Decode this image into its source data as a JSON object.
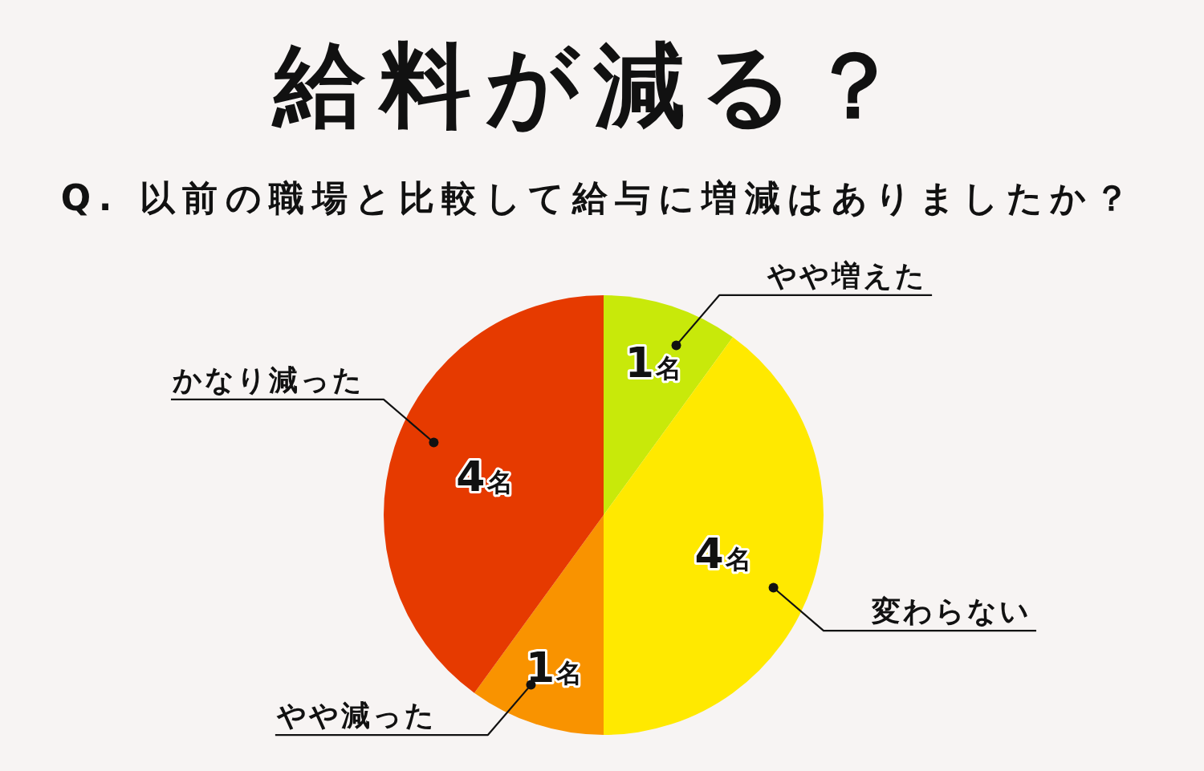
{
  "chart_data": {
    "type": "pie",
    "title": "給料が減る？",
    "subtitle": "Q. 以前の職場と比較して給与に増減はありましたか？",
    "categories": [
      "やや増えた",
      "変わらない",
      "やや減った",
      "かなり減った"
    ],
    "values": [
      1,
      4,
      1,
      4
    ],
    "colors": [
      "#c8e90a",
      "#ffe900",
      "#f99300",
      "#e63a00"
    ],
    "value_labels": [
      "1名",
      "4名",
      "1名",
      "4名"
    ]
  }
}
